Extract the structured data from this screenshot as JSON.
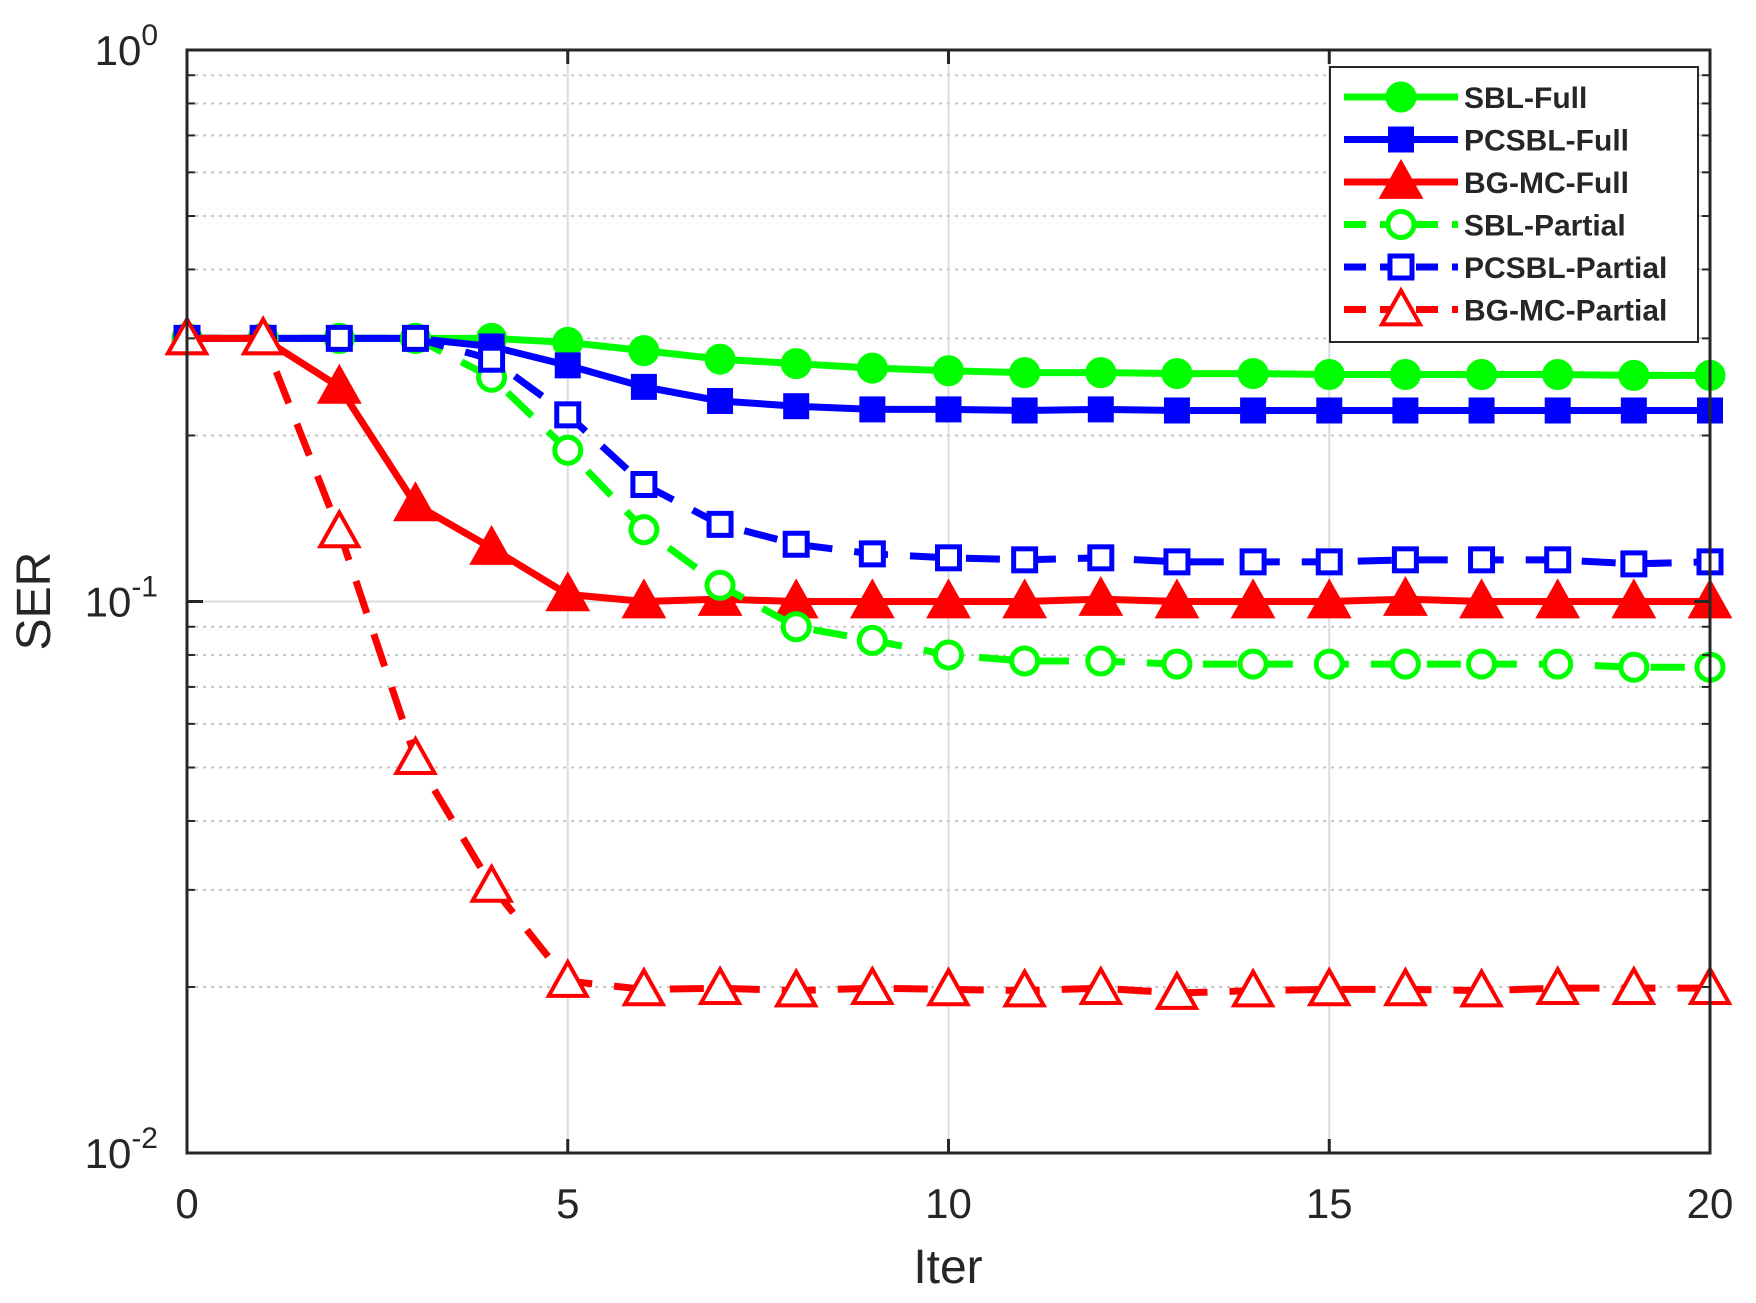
{
  "chart_data": {
    "type": "line",
    "xlabel": "Iter",
    "ylabel": "SER",
    "xlim": [
      0,
      20
    ],
    "ylim": [
      0.01,
      1
    ],
    "y_scale": "log",
    "grid": true,
    "legend_position": "top-right",
    "x_ticks": [
      0,
      5,
      10,
      15,
      20
    ],
    "x_tick_labels": [
      "0",
      "5",
      "10",
      "15",
      "20"
    ],
    "y_ticks": [
      {
        "value": 0.01,
        "base": "10",
        "exp": "-2"
      },
      {
        "value": 0.1,
        "base": "10",
        "exp": "-1"
      },
      {
        "value": 1,
        "base": "10",
        "exp": "0"
      }
    ],
    "x": [
      0,
      1,
      2,
      3,
      4,
      5,
      6,
      7,
      8,
      9,
      10,
      11,
      12,
      13,
      14,
      15,
      16,
      17,
      18,
      19,
      20
    ],
    "series": [
      {
        "name": "SBL-Full",
        "color": "#00ff00",
        "dash": "solid",
        "marker": "circle",
        "filled": true,
        "values": [
          0.3,
          0.3,
          0.3,
          0.3,
          0.3,
          0.295,
          0.285,
          0.275,
          0.27,
          0.265,
          0.262,
          0.26,
          0.26,
          0.259,
          0.259,
          0.258,
          0.258,
          0.258,
          0.258,
          0.257,
          0.257
        ]
      },
      {
        "name": "PCSBL-Full",
        "color": "#0000ff",
        "dash": "solid",
        "marker": "square",
        "filled": true,
        "values": [
          0.3,
          0.3,
          0.3,
          0.3,
          0.29,
          0.268,
          0.245,
          0.231,
          0.226,
          0.223,
          0.223,
          0.222,
          0.223,
          0.222,
          0.222,
          0.222,
          0.222,
          0.222,
          0.222,
          0.222,
          0.222
        ]
      },
      {
        "name": "BG-MC-Full",
        "color": "#ff0000",
        "dash": "solid",
        "marker": "triangle",
        "filled": true,
        "values": [
          0.3,
          0.3,
          0.245,
          0.15,
          0.125,
          0.103,
          0.1,
          0.101,
          0.1,
          0.1,
          0.1,
          0.1,
          0.101,
          0.1,
          0.1,
          0.1,
          0.101,
          0.1,
          0.1,
          0.1,
          0.1
        ]
      },
      {
        "name": "SBL-Partial",
        "color": "#00ff00",
        "dash": "dashed",
        "marker": "circle",
        "filled": false,
        "values": [
          0.3,
          0.3,
          0.3,
          0.3,
          0.255,
          0.188,
          0.135,
          0.107,
          0.09,
          0.085,
          0.08,
          0.078,
          0.078,
          0.077,
          0.077,
          0.077,
          0.077,
          0.077,
          0.077,
          0.076,
          0.076
        ]
      },
      {
        "name": "PCSBL-Partial",
        "color": "#0000ff",
        "dash": "dashed",
        "marker": "square",
        "filled": false,
        "values": [
          0.3,
          0.3,
          0.3,
          0.3,
          0.275,
          0.218,
          0.163,
          0.138,
          0.127,
          0.122,
          0.12,
          0.119,
          0.12,
          0.118,
          0.118,
          0.118,
          0.119,
          0.119,
          0.119,
          0.117,
          0.118
        ]
      },
      {
        "name": "BG-MC-Partial",
        "color": "#ff0000",
        "dash": "dashed",
        "marker": "triangle",
        "filled": false,
        "values": [
          0.3,
          0.3,
          0.134,
          0.052,
          0.0305,
          0.0205,
          0.0198,
          0.0199,
          0.0197,
          0.0199,
          0.0198,
          0.0197,
          0.0199,
          0.0195,
          0.0197,
          0.0198,
          0.0198,
          0.0197,
          0.0199,
          0.0199,
          0.0199
        ]
      }
    ]
  }
}
